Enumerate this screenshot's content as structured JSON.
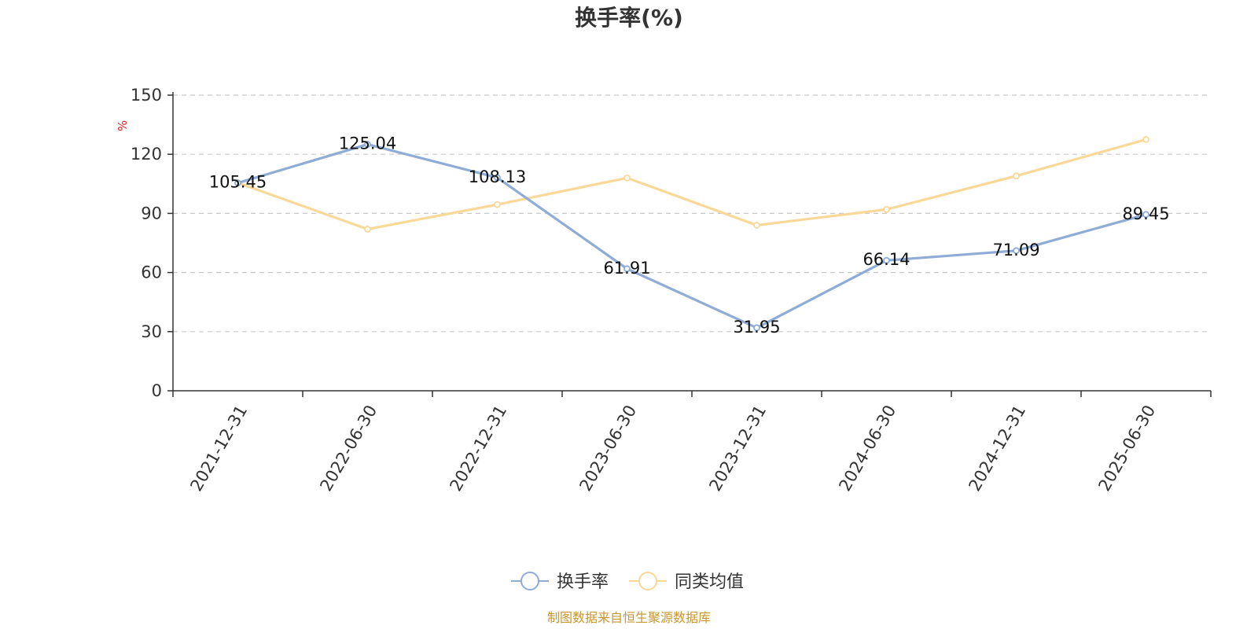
{
  "chart_data": {
    "type": "line",
    "title": "换手率(%)",
    "ylabel": "%",
    "ylim": [
      0,
      150
    ],
    "yticks": [
      0,
      30,
      60,
      90,
      120,
      150
    ],
    "grid": true,
    "categories": [
      "2021-12-31",
      "2022-06-30",
      "2022-12-31",
      "2023-06-30",
      "2023-12-31",
      "2024-06-30",
      "2024-12-31",
      "2025-06-30"
    ],
    "series": [
      {
        "name": "换手率",
        "color": "#8eacd6",
        "values": [
          105.45,
          125.04,
          108.13,
          61.91,
          31.95,
          66.14,
          71.09,
          89.45
        ],
        "labels": [
          "105.45",
          "125.04",
          "108.13",
          "61.91",
          "31.95",
          "66.14",
          "71.09",
          "89.45"
        ]
      },
      {
        "name": "同类均值",
        "color": "#f9d898",
        "values": [
          105.5,
          82.0,
          94.5,
          108.0,
          84.0,
          92.0,
          109.0,
          127.5
        ]
      }
    ],
    "legend_position": "bottom-center"
  },
  "source_note": "制图数据来自恒生聚源数据库"
}
